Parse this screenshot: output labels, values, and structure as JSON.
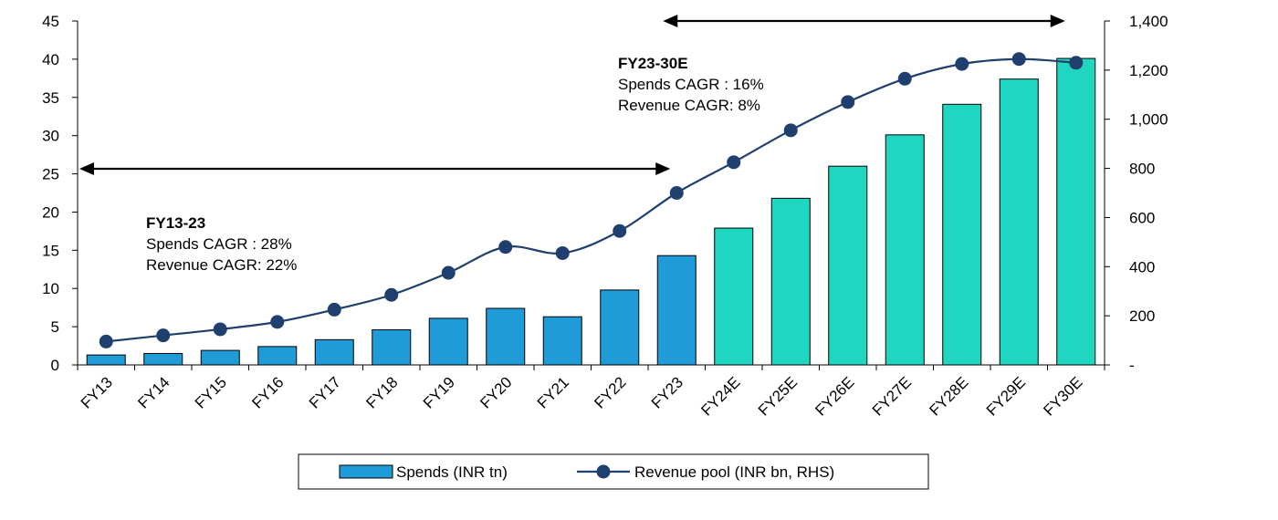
{
  "chart_data": {
    "type": "bar",
    "categories": [
      "FY13",
      "FY14",
      "FY15",
      "FY16",
      "FY17",
      "FY18",
      "FY19",
      "FY20",
      "FY21",
      "FY22",
      "FY23",
      "FY24E",
      "FY25E",
      "FY26E",
      "FY27E",
      "FY28E",
      "FY29E",
      "FY30E"
    ],
    "series": [
      {
        "name": "Spends (INR tn)",
        "type": "bar",
        "axis": "left",
        "values": [
          1.3,
          1.5,
          1.9,
          2.4,
          3.3,
          4.6,
          6.1,
          7.4,
          6.3,
          9.8,
          14.3,
          17.9,
          21.8,
          26.0,
          30.1,
          34.1,
          37.4,
          40.1
        ]
      },
      {
        "name": "Revenue pool (INR bn, RHS)",
        "type": "line",
        "axis": "right",
        "values": [
          95,
          120,
          145,
          175,
          225,
          285,
          375,
          480,
          455,
          545,
          700,
          825,
          955,
          1070,
          1165,
          1225,
          1245,
          1230
        ]
      }
    ],
    "y_left": {
      "min": 0,
      "max": 45,
      "ticks": [
        "0",
        "5",
        "10",
        "15",
        "20",
        "25",
        "30",
        "35",
        "40",
        "45"
      ]
    },
    "y_right": {
      "min": 0,
      "max": 1400,
      "ticks": [
        "-",
        "200",
        "400",
        "600",
        "800",
        "1,000",
        "1,200",
        "1,400"
      ]
    },
    "colors": {
      "historical_bar": "#1f9bd7",
      "forecast_bar": "#1fd6c0",
      "line": "#1f3f6e",
      "bar_border": "#000000"
    },
    "forecast_start_index": 11,
    "legend_position": "bottom",
    "annotations": [
      {
        "title": "FY13-23",
        "lines": [
          "Spends CAGR : 28%",
          "Revenue CAGR: 22%"
        ],
        "arrow_from": "FY13",
        "arrow_to": "FY23"
      },
      {
        "title": "FY23-30E",
        "lines": [
          "Spends CAGR : 16%",
          "Revenue CAGR: 8%"
        ],
        "arrow_from": "FY23",
        "arrow_to": "FY30E"
      }
    ]
  }
}
